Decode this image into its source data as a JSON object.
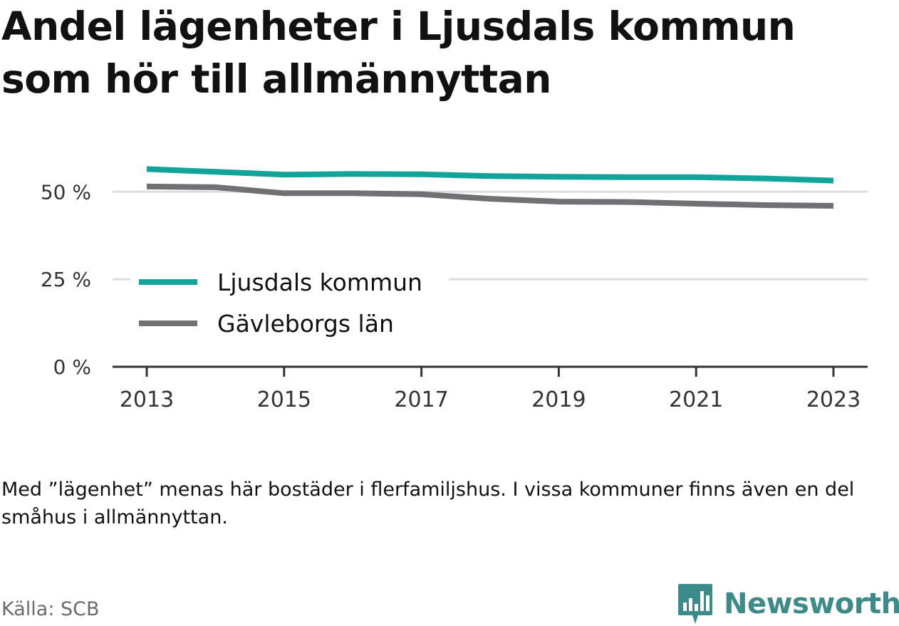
{
  "title": "Andel lägenheter i Ljusdals kommun som hör till allmännyttan",
  "note": "Med ”lägenhet” menas här bostäder i flerfamiljshus. I vissa kommuner finns även en del småhus i allmännyttan.",
  "source": "Källa: SCB",
  "brand": {
    "name": "Newsworthy",
    "icon": "newsworthy-logo-icon",
    "color": "#3d8a8a"
  },
  "colors": {
    "ljusdal": "#12a39a",
    "gavleborg": "#707075",
    "grid": "#dddddd",
    "axis": "#333333"
  },
  "chart_data": {
    "type": "line",
    "title": "Andel lägenheter i Ljusdals kommun som hör till allmännyttan",
    "xlabel": "",
    "ylabel": "",
    "x": [
      2013,
      2014,
      2015,
      2016,
      2017,
      2018,
      2019,
      2020,
      2021,
      2022,
      2023
    ],
    "x_ticks": [
      "2013",
      "2015",
      "2017",
      "2019",
      "2021",
      "2023"
    ],
    "y_ticks": [
      "0 %",
      "25 %",
      "50 %"
    ],
    "y_tick_values": [
      0,
      25,
      50
    ],
    "ylim": [
      0,
      58
    ],
    "grid": true,
    "legend": "center-left",
    "series": [
      {
        "name": "Ljusdals kommun",
        "color": "#12a39a",
        "values": [
          56.5,
          55.7,
          54.9,
          55.1,
          55.0,
          54.5,
          54.3,
          54.2,
          54.2,
          53.8,
          53.2
        ]
      },
      {
        "name": "Gävleborgs län",
        "color": "#707075",
        "values": [
          51.5,
          51.3,
          49.6,
          49.6,
          49.3,
          48.0,
          47.2,
          47.1,
          46.6,
          46.2,
          46.0
        ]
      }
    ]
  }
}
